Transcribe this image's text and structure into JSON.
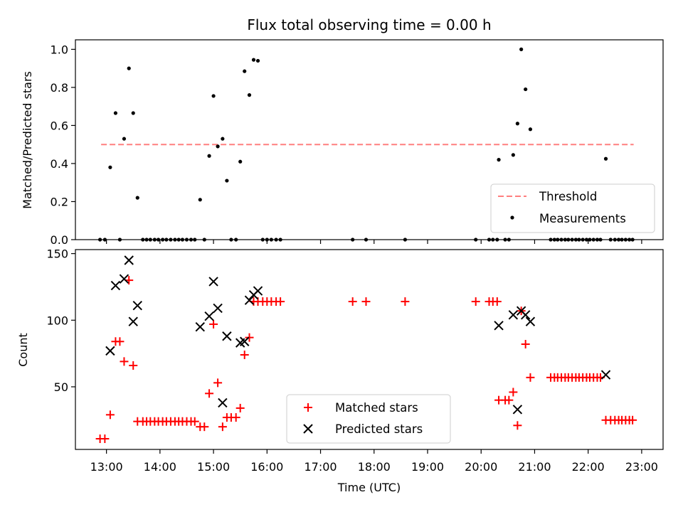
{
  "chart_data": [
    {
      "type": "scatter",
      "title": "Flux total observing time = 0.00 h",
      "xlabel": "",
      "ylabel": "Matched/Predicted stars",
      "ylim": [
        0,
        1.05
      ],
      "yticks": [
        0.0,
        0.2,
        0.4,
        0.6,
        0.8,
        1.0
      ],
      "ytick_labels": [
        "0.0",
        "0.2",
        "0.4",
        "0.6",
        "0.8",
        "1.0"
      ],
      "threshold": {
        "name": "Threshold",
        "y": 0.5,
        "x_range": [
          12.9,
          22.85
        ],
        "color": "#ff7f7f"
      },
      "legend": {
        "position": "lower-right",
        "entries": [
          "Threshold",
          "Measurements"
        ]
      },
      "series": [
        {
          "name": "Measurements",
          "color": "#000000",
          "marker": "dot",
          "points": [
            [
              12.88,
              0.0
            ],
            [
              12.97,
              0.0
            ],
            [
              13.07,
              0.38
            ],
            [
              13.17,
              0.665
            ],
            [
              13.25,
              0.0
            ],
            [
              13.33,
              0.53
            ],
            [
              13.42,
              0.9
            ],
            [
              13.5,
              0.665
            ],
            [
              13.58,
              0.22
            ],
            [
              13.68,
              0.0
            ],
            [
              13.75,
              0.0
            ],
            [
              13.82,
              0.0
            ],
            [
              13.9,
              0.0
            ],
            [
              13.97,
              0.0
            ],
            [
              14.05,
              0.0
            ],
            [
              14.12,
              0.0
            ],
            [
              14.2,
              0.0
            ],
            [
              14.28,
              0.0
            ],
            [
              14.35,
              0.0
            ],
            [
              14.42,
              0.0
            ],
            [
              14.5,
              0.0
            ],
            [
              14.58,
              0.0
            ],
            [
              14.65,
              0.0
            ],
            [
              14.75,
              0.21
            ],
            [
              14.83,
              0.0
            ],
            [
              14.92,
              0.44
            ],
            [
              15.0,
              0.755
            ],
            [
              15.08,
              0.49
            ],
            [
              15.17,
              0.53
            ],
            [
              15.25,
              0.31
            ],
            [
              15.33,
              0.0
            ],
            [
              15.42,
              0.0
            ],
            [
              15.5,
              0.41
            ],
            [
              15.58,
              0.885
            ],
            [
              15.67,
              0.76
            ],
            [
              15.75,
              0.945
            ],
            [
              15.83,
              0.94
            ],
            [
              15.92,
              0.0
            ],
            [
              16.0,
              0.0
            ],
            [
              16.08,
              0.0
            ],
            [
              16.17,
              0.0
            ],
            [
              16.25,
              0.0
            ],
            [
              17.6,
              0.0
            ],
            [
              17.85,
              0.0
            ],
            [
              18.58,
              0.0
            ],
            [
              19.9,
              0.0
            ],
            [
              20.15,
              0.0
            ],
            [
              20.22,
              0.0
            ],
            [
              20.3,
              0.0
            ],
            [
              20.33,
              0.42
            ],
            [
              20.45,
              0.0
            ],
            [
              20.52,
              0.0
            ],
            [
              20.6,
              0.445
            ],
            [
              20.68,
              0.61
            ],
            [
              20.75,
              1.0
            ],
            [
              20.83,
              0.79
            ],
            [
              20.92,
              0.58
            ],
            [
              21.3,
              0.0
            ],
            [
              21.37,
              0.0
            ],
            [
              21.43,
              0.0
            ],
            [
              21.5,
              0.0
            ],
            [
              21.57,
              0.0
            ],
            [
              21.63,
              0.0
            ],
            [
              21.7,
              0.0
            ],
            [
              21.77,
              0.0
            ],
            [
              21.83,
              0.0
            ],
            [
              21.9,
              0.0
            ],
            [
              21.97,
              0.0
            ],
            [
              22.03,
              0.0
            ],
            [
              22.1,
              0.0
            ],
            [
              22.17,
              0.0
            ],
            [
              22.23,
              0.0
            ],
            [
              22.33,
              0.425
            ],
            [
              22.42,
              0.0
            ],
            [
              22.5,
              0.0
            ],
            [
              22.57,
              0.0
            ],
            [
              22.63,
              0.0
            ],
            [
              22.7,
              0.0
            ],
            [
              22.77,
              0.0
            ],
            [
              22.83,
              0.0
            ]
          ]
        }
      ]
    },
    {
      "type": "scatter",
      "title": "",
      "xlabel": "Time (UTC)",
      "ylabel": "Count",
      "ylim": [
        3,
        153
      ],
      "yticks": [
        50,
        100,
        150
      ],
      "ytick_labels": [
        "50",
        "100",
        "150"
      ],
      "xlim": [
        12.42,
        23.4
      ],
      "xticks": [
        13,
        14,
        15,
        16,
        17,
        18,
        19,
        20,
        21,
        22,
        23
      ],
      "xtick_labels": [
        "13:00",
        "14:00",
        "15:00",
        "16:00",
        "17:00",
        "18:00",
        "19:00",
        "20:00",
        "21:00",
        "22:00",
        "23:00"
      ],
      "legend": {
        "position": "lower-center",
        "entries": [
          "Matched stars",
          "Predicted stars"
        ]
      },
      "series": [
        {
          "name": "Matched stars",
          "color": "#ff0000",
          "marker": "plus",
          "points": [
            [
              12.88,
              11
            ],
            [
              12.97,
              11
            ],
            [
              13.07,
              29
            ],
            [
              13.17,
              84
            ],
            [
              13.25,
              84
            ],
            [
              13.33,
              69
            ],
            [
              13.42,
              130
            ],
            [
              13.5,
              66
            ],
            [
              13.58,
              24
            ],
            [
              13.68,
              24
            ],
            [
              13.75,
              24
            ],
            [
              13.82,
              24
            ],
            [
              13.9,
              24
            ],
            [
              13.97,
              24
            ],
            [
              14.05,
              24
            ],
            [
              14.12,
              24
            ],
            [
              14.2,
              24
            ],
            [
              14.28,
              24
            ],
            [
              14.35,
              24
            ],
            [
              14.42,
              24
            ],
            [
              14.5,
              24
            ],
            [
              14.58,
              24
            ],
            [
              14.65,
              24
            ],
            [
              14.75,
              20
            ],
            [
              14.83,
              20
            ],
            [
              14.92,
              45
            ],
            [
              15.0,
              97
            ],
            [
              15.08,
              53
            ],
            [
              15.17,
              20
            ],
            [
              15.25,
              27
            ],
            [
              15.33,
              27
            ],
            [
              15.42,
              27
            ],
            [
              15.5,
              34
            ],
            [
              15.58,
              74
            ],
            [
              15.67,
              87
            ],
            [
              15.75,
              114
            ],
            [
              15.83,
              114
            ],
            [
              15.92,
              114
            ],
            [
              16.0,
              114
            ],
            [
              16.08,
              114
            ],
            [
              16.17,
              114
            ],
            [
              16.25,
              114
            ],
            [
              17.6,
              114
            ],
            [
              17.85,
              114
            ],
            [
              18.58,
              114
            ],
            [
              19.9,
              114
            ],
            [
              20.15,
              114
            ],
            [
              20.22,
              114
            ],
            [
              20.3,
              114
            ],
            [
              20.33,
              40
            ],
            [
              20.45,
              40
            ],
            [
              20.52,
              40
            ],
            [
              20.6,
              46
            ],
            [
              20.68,
              21
            ],
            [
              20.75,
              107
            ],
            [
              20.83,
              82
            ],
            [
              20.92,
              57
            ],
            [
              21.3,
              57
            ],
            [
              21.37,
              57
            ],
            [
              21.43,
              57
            ],
            [
              21.5,
              57
            ],
            [
              21.57,
              57
            ],
            [
              21.63,
              57
            ],
            [
              21.7,
              57
            ],
            [
              21.77,
              57
            ],
            [
              21.83,
              57
            ],
            [
              21.9,
              57
            ],
            [
              21.97,
              57
            ],
            [
              22.03,
              57
            ],
            [
              22.1,
              57
            ],
            [
              22.17,
              57
            ],
            [
              22.23,
              57
            ],
            [
              22.33,
              25
            ],
            [
              22.42,
              25
            ],
            [
              22.5,
              25
            ],
            [
              22.57,
              25
            ],
            [
              22.63,
              25
            ],
            [
              22.7,
              25
            ],
            [
              22.77,
              25
            ],
            [
              22.83,
              25
            ]
          ]
        },
        {
          "name": "Predicted stars",
          "color": "#000000",
          "marker": "x",
          "points": [
            [
              13.07,
              77
            ],
            [
              13.17,
              126
            ],
            [
              13.33,
              131
            ],
            [
              13.42,
              145
            ],
            [
              13.5,
              99
            ],
            [
              13.58,
              111
            ],
            [
              14.75,
              95
            ],
            [
              14.92,
              103
            ],
            [
              15.0,
              129
            ],
            [
              15.08,
              109
            ],
            [
              15.17,
              38
            ],
            [
              15.25,
              88
            ],
            [
              15.5,
              83
            ],
            [
              15.58,
              84
            ],
            [
              15.67,
              115
            ],
            [
              15.75,
              119
            ],
            [
              15.83,
              122
            ],
            [
              20.33,
              96
            ],
            [
              20.6,
              104
            ],
            [
              20.68,
              33
            ],
            [
              20.75,
              107
            ],
            [
              20.83,
              104
            ],
            [
              20.92,
              99
            ],
            [
              22.33,
              59
            ]
          ]
        }
      ]
    }
  ]
}
